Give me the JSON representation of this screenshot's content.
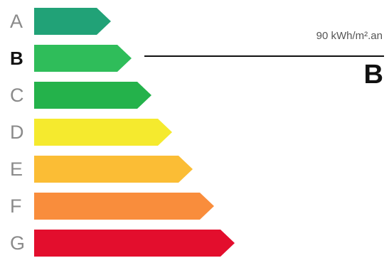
{
  "current_rating": {
    "value_text": "90 kWh/m².an",
    "class_label": "B"
  },
  "ratings": [
    {
      "letter": "A",
      "color": "#21a277",
      "active": false
    },
    {
      "letter": "B",
      "color": "#2fbd5a",
      "active": true
    },
    {
      "letter": "C",
      "color": "#24b24b",
      "active": false
    },
    {
      "letter": "D",
      "color": "#f5ea2e",
      "active": false
    },
    {
      "letter": "E",
      "color": "#fbbd35",
      "active": false
    },
    {
      "letter": "F",
      "color": "#f98d3c",
      "active": false
    },
    {
      "letter": "G",
      "color": "#e30e2d",
      "active": false
    }
  ]
}
